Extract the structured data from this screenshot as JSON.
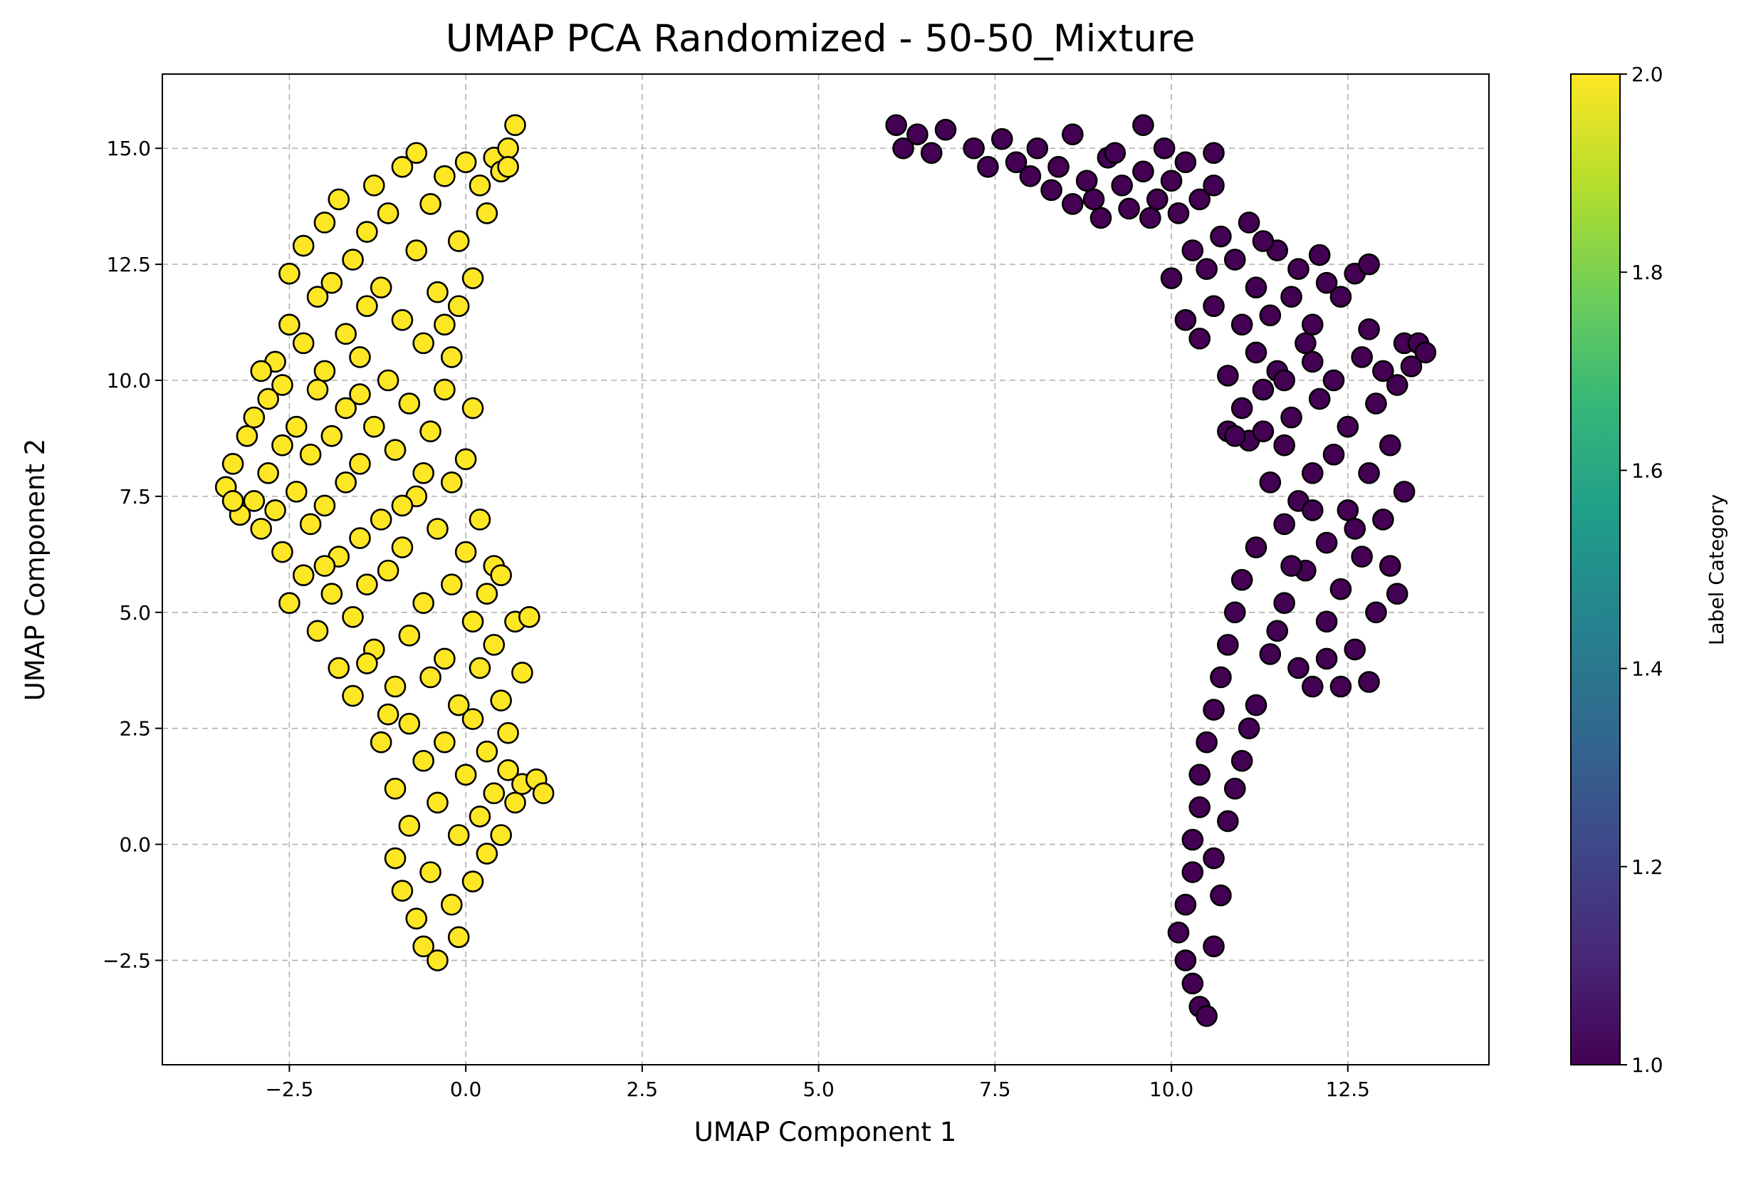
{
  "chart_data": {
    "type": "scatter",
    "title": "UMAP PCA Randomized - 50-50_Mixture",
    "xlabel": "UMAP Component 1",
    "ylabel": "UMAP Component 2",
    "xlim": [
      -4.3,
      14.5
    ],
    "ylim": [
      -4.75,
      16.6
    ],
    "xticks": [
      -2.5,
      0.0,
      2.5,
      5.0,
      7.5,
      10.0,
      12.5
    ],
    "xtick_labels": [
      "−2.5",
      "0.0",
      "2.5",
      "5.0",
      "7.5",
      "10.0",
      "12.5"
    ],
    "yticks": [
      -2.5,
      0.0,
      2.5,
      5.0,
      7.5,
      10.0,
      12.5,
      15.0
    ],
    "ytick_labels": [
      "−2.5",
      "0.0",
      "2.5",
      "5.0",
      "7.5",
      "10.0",
      "12.5",
      "15.0"
    ],
    "grid": true,
    "colorbar": {
      "label": "Label Category",
      "range": [
        1.0,
        2.0
      ],
      "ticks": [
        1.0,
        1.2,
        1.4,
        1.6,
        1.8,
        2.0
      ],
      "tick_labels": [
        "1.0",
        "1.2",
        "1.4",
        "1.6",
        "1.8",
        "2.0"
      ],
      "colormap": [
        "#440154",
        "#482878",
        "#3e4989",
        "#31688e",
        "#26828e",
        "#1f9e89",
        "#35b779",
        "#6ece58",
        "#b5de2b",
        "#fde725"
      ]
    },
    "series": [
      {
        "label_value": 2,
        "color": "#fde725",
        "points": [
          [
            -3.4,
            7.7
          ],
          [
            -3.3,
            8.2
          ],
          [
            -3.2,
            7.1
          ],
          [
            -3.1,
            8.8
          ],
          [
            -3.0,
            9.2
          ],
          [
            -3.0,
            7.4
          ],
          [
            -2.9,
            6.8
          ],
          [
            -2.8,
            8.0
          ],
          [
            -2.8,
            9.6
          ],
          [
            -2.7,
            10.4
          ],
          [
            -2.7,
            7.2
          ],
          [
            -2.6,
            6.3
          ],
          [
            -2.6,
            8.6
          ],
          [
            -2.5,
            11.2
          ],
          [
            -2.5,
            12.3
          ],
          [
            -2.5,
            5.2
          ],
          [
            -2.4,
            9.0
          ],
          [
            -2.4,
            7.6
          ],
          [
            -2.3,
            10.8
          ],
          [
            -2.3,
            5.8
          ],
          [
            -2.3,
            12.9
          ],
          [
            -2.2,
            6.9
          ],
          [
            -2.2,
            8.4
          ],
          [
            -2.1,
            11.8
          ],
          [
            -2.1,
            9.8
          ],
          [
            -2.1,
            4.6
          ],
          [
            -2.0,
            13.4
          ],
          [
            -2.0,
            7.3
          ],
          [
            -2.0,
            10.2
          ],
          [
            -1.9,
            5.4
          ],
          [
            -1.9,
            8.8
          ],
          [
            -1.9,
            12.1
          ],
          [
            -1.8,
            6.2
          ],
          [
            -1.8,
            3.8
          ],
          [
            -1.8,
            13.9
          ],
          [
            -1.7,
            9.4
          ],
          [
            -1.7,
            11.0
          ],
          [
            -1.7,
            7.8
          ],
          [
            -1.6,
            4.9
          ],
          [
            -1.6,
            12.6
          ],
          [
            -1.6,
            3.2
          ],
          [
            -1.5,
            6.6
          ],
          [
            -1.5,
            10.5
          ],
          [
            -1.5,
            8.2
          ],
          [
            -1.4,
            13.2
          ],
          [
            -1.4,
            5.6
          ],
          [
            -1.4,
            11.6
          ],
          [
            -1.3,
            14.2
          ],
          [
            -1.3,
            9.0
          ],
          [
            -1.3,
            4.2
          ],
          [
            -1.2,
            7.0
          ],
          [
            -1.2,
            12.0
          ],
          [
            -1.2,
            2.2
          ],
          [
            -1.1,
            10.0
          ],
          [
            -1.1,
            5.9
          ],
          [
            -1.1,
            13.6
          ],
          [
            -1.0,
            8.5
          ],
          [
            -1.0,
            1.2
          ],
          [
            -1.0,
            3.4
          ],
          [
            -1.0,
            -0.3
          ],
          [
            -0.9,
            14.6
          ],
          [
            -0.9,
            11.3
          ],
          [
            -0.9,
            6.4
          ],
          [
            -0.9,
            -1.0
          ],
          [
            -0.8,
            9.5
          ],
          [
            -0.8,
            4.5
          ],
          [
            -0.8,
            2.6
          ],
          [
            -0.8,
            0.4
          ],
          [
            -0.7,
            12.8
          ],
          [
            -0.7,
            7.5
          ],
          [
            -0.7,
            -1.6
          ],
          [
            -0.7,
            14.9
          ],
          [
            -0.6,
            10.8
          ],
          [
            -0.6,
            5.2
          ],
          [
            -0.6,
            1.8
          ],
          [
            -0.6,
            -2.2
          ],
          [
            -0.5,
            8.9
          ],
          [
            -0.5,
            13.8
          ],
          [
            -0.5,
            3.6
          ],
          [
            -0.5,
            -0.6
          ],
          [
            -0.4,
            6.8
          ],
          [
            -0.4,
            11.9
          ],
          [
            -0.4,
            0.9
          ],
          [
            -0.4,
            -2.5
          ],
          [
            -0.3,
            14.4
          ],
          [
            -0.3,
            9.8
          ],
          [
            -0.3,
            4.0
          ],
          [
            -0.3,
            2.2
          ],
          [
            -0.2,
            7.8
          ],
          [
            -0.2,
            -1.3
          ],
          [
            -0.2,
            10.5
          ],
          [
            -0.2,
            5.6
          ],
          [
            -0.1,
            13.0
          ],
          [
            -0.1,
            0.2
          ],
          [
            -0.1,
            3.0
          ],
          [
            -0.1,
            -2.0
          ],
          [
            0.0,
            14.7
          ],
          [
            0.0,
            6.3
          ],
          [
            0.0,
            8.3
          ],
          [
            0.0,
            1.5
          ],
          [
            0.1,
            12.2
          ],
          [
            0.1,
            -0.8
          ],
          [
            0.1,
            4.8
          ],
          [
            0.1,
            2.7
          ],
          [
            0.2,
            14.2
          ],
          [
            0.2,
            7.0
          ],
          [
            0.2,
            0.6
          ],
          [
            0.2,
            3.8
          ],
          [
            0.3,
            13.6
          ],
          [
            0.3,
            5.4
          ],
          [
            0.3,
            -0.2
          ],
          [
            0.3,
            2.0
          ],
          [
            0.4,
            14.8
          ],
          [
            0.4,
            6.0
          ],
          [
            0.4,
            1.1
          ],
          [
            0.4,
            4.3
          ],
          [
            0.5,
            14.5
          ],
          [
            0.5,
            3.1
          ],
          [
            0.5,
            0.2
          ],
          [
            0.5,
            5.8
          ],
          [
            0.6,
            15.0
          ],
          [
            0.6,
            2.4
          ],
          [
            0.6,
            1.6
          ],
          [
            0.7,
            4.8
          ],
          [
            0.7,
            0.9
          ],
          [
            0.8,
            3.7
          ],
          [
            0.8,
            1.3
          ],
          [
            0.9,
            4.9
          ],
          [
            1.0,
            1.4
          ],
          [
            1.1,
            1.1
          ],
          [
            0.7,
            15.5
          ],
          [
            0.6,
            14.6
          ],
          [
            -1.4,
            3.9
          ],
          [
            -1.1,
            2.8
          ],
          [
            -0.6,
            8.0
          ],
          [
            -2.6,
            9.9
          ],
          [
            -3.3,
            7.4
          ],
          [
            -2.9,
            10.2
          ],
          [
            -2.0,
            6.0
          ],
          [
            -1.5,
            9.7
          ],
          [
            -0.9,
            7.3
          ],
          [
            0.1,
            9.4
          ],
          [
            -0.3,
            11.2
          ],
          [
            -0.1,
            11.6
          ]
        ]
      },
      {
        "label_value": 1,
        "color": "#440154",
        "points": [
          [
            6.1,
            15.5
          ],
          [
            6.2,
            15.0
          ],
          [
            6.4,
            15.3
          ],
          [
            6.6,
            14.9
          ],
          [
            6.8,
            15.4
          ],
          [
            7.2,
            15.0
          ],
          [
            7.4,
            14.6
          ],
          [
            7.6,
            15.2
          ],
          [
            7.8,
            14.7
          ],
          [
            8.0,
            14.4
          ],
          [
            8.1,
            15.0
          ],
          [
            8.3,
            14.1
          ],
          [
            8.4,
            14.6
          ],
          [
            8.6,
            13.8
          ],
          [
            8.6,
            15.3
          ],
          [
            8.8,
            14.3
          ],
          [
            9.0,
            13.5
          ],
          [
            9.1,
            14.8
          ],
          [
            9.3,
            14.2
          ],
          [
            9.4,
            13.7
          ],
          [
            9.6,
            15.5
          ],
          [
            9.6,
            14.5
          ],
          [
            9.8,
            13.9
          ],
          [
            9.9,
            15.0
          ],
          [
            10.0,
            14.3
          ],
          [
            10.0,
            12.2
          ],
          [
            10.1,
            13.6
          ],
          [
            10.2,
            11.3
          ],
          [
            10.2,
            14.7
          ],
          [
            10.3,
            12.8
          ],
          [
            10.4,
            10.9
          ],
          [
            10.4,
            13.9
          ],
          [
            10.5,
            12.4
          ],
          [
            10.6,
            11.6
          ],
          [
            10.6,
            14.2
          ],
          [
            10.7,
            13.1
          ],
          [
            10.8,
            10.1
          ],
          [
            10.8,
            8.9
          ],
          [
            10.9,
            12.6
          ],
          [
            11.0,
            11.2
          ],
          [
            11.0,
            9.4
          ],
          [
            11.1,
            13.4
          ],
          [
            11.1,
            8.7
          ],
          [
            11.2,
            10.6
          ],
          [
            11.2,
            12.0
          ],
          [
            11.3,
            9.8
          ],
          [
            11.4,
            11.4
          ],
          [
            11.4,
            7.8
          ],
          [
            11.5,
            12.8
          ],
          [
            11.5,
            10.2
          ],
          [
            11.6,
            8.6
          ],
          [
            11.6,
            6.9
          ],
          [
            11.7,
            11.8
          ],
          [
            11.7,
            9.2
          ],
          [
            11.8,
            12.4
          ],
          [
            11.8,
            7.4
          ],
          [
            11.9,
            10.8
          ],
          [
            11.9,
            5.9
          ],
          [
            12.0,
            8.0
          ],
          [
            12.0,
            11.2
          ],
          [
            12.1,
            12.7
          ],
          [
            12.1,
            9.6
          ],
          [
            12.2,
            6.5
          ],
          [
            12.2,
            4.8
          ],
          [
            12.3,
            10.0
          ],
          [
            12.3,
            8.4
          ],
          [
            12.4,
            11.8
          ],
          [
            12.4,
            5.5
          ],
          [
            12.5,
            7.2
          ],
          [
            12.5,
            9.0
          ],
          [
            12.6,
            12.3
          ],
          [
            12.6,
            4.2
          ],
          [
            12.7,
            10.5
          ],
          [
            12.7,
            6.2
          ],
          [
            12.8,
            8.0
          ],
          [
            12.8,
            11.1
          ],
          [
            12.9,
            5.0
          ],
          [
            12.9,
            9.5
          ],
          [
            13.0,
            7.0
          ],
          [
            13.0,
            10.2
          ],
          [
            13.1,
            6.0
          ],
          [
            13.1,
            8.6
          ],
          [
            13.2,
            9.9
          ],
          [
            13.2,
            5.4
          ],
          [
            13.3,
            10.8
          ],
          [
            13.3,
            7.6
          ],
          [
            13.4,
            10.3
          ],
          [
            13.5,
            10.8
          ],
          [
            11.2,
            6.4
          ],
          [
            11.0,
            5.7
          ],
          [
            10.9,
            5.0
          ],
          [
            10.8,
            4.3
          ],
          [
            10.7,
            3.6
          ],
          [
            10.6,
            2.9
          ],
          [
            10.5,
            2.2
          ],
          [
            10.4,
            1.5
          ],
          [
            10.4,
            0.8
          ],
          [
            10.3,
            0.1
          ],
          [
            10.3,
            -0.6
          ],
          [
            10.2,
            -1.3
          ],
          [
            10.1,
            -1.9
          ],
          [
            10.2,
            -2.5
          ],
          [
            10.3,
            -3.0
          ],
          [
            10.4,
            -3.5
          ],
          [
            10.5,
            -3.7
          ],
          [
            10.6,
            -2.2
          ],
          [
            10.7,
            -1.1
          ],
          [
            10.8,
            0.5
          ],
          [
            11.0,
            1.8
          ],
          [
            11.2,
            3.0
          ],
          [
            11.4,
            4.1
          ],
          [
            11.1,
            2.5
          ],
          [
            10.9,
            1.2
          ],
          [
            10.6,
            -0.3
          ],
          [
            11.6,
            5.2
          ],
          [
            11.8,
            3.8
          ],
          [
            12.0,
            3.4
          ],
          [
            12.4,
            3.4
          ],
          [
            12.8,
            3.5
          ],
          [
            12.2,
            4.0
          ],
          [
            11.5,
            4.6
          ],
          [
            11.7,
            6.0
          ],
          [
            12.0,
            7.2
          ],
          [
            12.6,
            6.8
          ],
          [
            11.3,
            8.9
          ],
          [
            10.9,
            8.8
          ],
          [
            11.6,
            10.0
          ],
          [
            12.0,
            10.4
          ],
          [
            9.2,
            14.9
          ],
          [
            8.9,
            13.9
          ],
          [
            9.7,
            13.5
          ],
          [
            10.6,
            14.9
          ],
          [
            11.3,
            13.0
          ],
          [
            12.2,
            12.1
          ],
          [
            12.8,
            12.5
          ],
          [
            13.6,
            10.6
          ]
        ]
      }
    ]
  }
}
